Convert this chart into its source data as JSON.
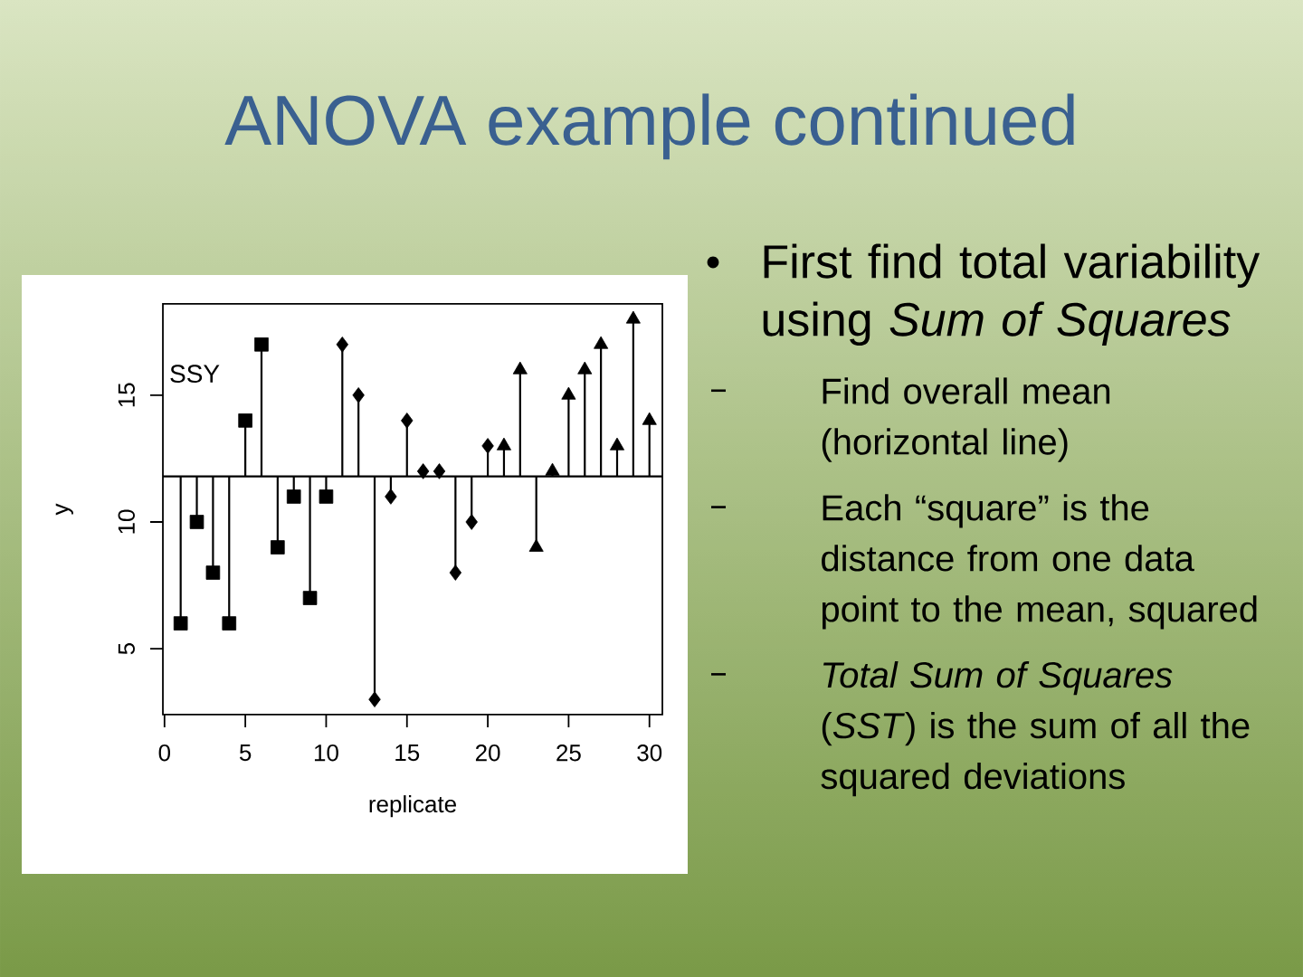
{
  "chart_data": {
    "type": "scatter",
    "title": "ANOVA example continued",
    "xlabel": "replicate",
    "ylabel": "y",
    "annotations": [
      "SSY",
      "First find total variability using *Sum of Squares*",
      "Find overall mean (horizontal line)",
      "Each “square” is the distance from one data point to the mean, squared",
      "*Total Sum of Squares* (*SST*) is the sum of all the squared deviations"
    ],
    "series": [
      {
        "color": "#000000",
        "marker": "square",
        "x": [
          1,
          2,
          3,
          4,
          5,
          6,
          7,
          8,
          9,
          10
        ],
        "values": [
          6,
          10,
          8,
          6,
          14,
          17,
          9,
          11,
          7,
          11
        ],
        "errors": [
          [
            6,
            11.8
          ],
          [
            10,
            11.8
          ],
          [
            8,
            11.8
          ],
          [
            6,
            11.8
          ],
          [
            11.8,
            14
          ],
          [
            11.8,
            17
          ],
          [
            9,
            11.8
          ],
          [
            11,
            11.8
          ],
          [
            7,
            11.8
          ],
          [
            11,
            11.8
          ]
        ]
      },
      {
        "color": "#000000",
        "marker": "diamond",
        "x": [
          11,
          12,
          13,
          14,
          15,
          16,
          17,
          18,
          19,
          20
        ],
        "values": [
          17,
          15,
          3,
          11,
          14,
          12,
          12,
          8,
          10,
          13
        ],
        "errors": [
          [
            11.8,
            17
          ],
          [
            11.8,
            15
          ],
          [
            3,
            11.8
          ],
          [
            11,
            11.8
          ],
          [
            11.8,
            14
          ],
          [
            11.8,
            12
          ],
          [
            11.8,
            12
          ],
          [
            8,
            11.8
          ],
          [
            10,
            11.8
          ],
          [
            11.8,
            13
          ]
        ]
      },
      {
        "color": "#000000",
        "marker": "triangle",
        "x": [
          21,
          22,
          23,
          24,
          25,
          26,
          27,
          28,
          29,
          30
        ],
        "values": [
          13,
          16,
          9,
          12,
          15,
          16,
          17,
          13,
          18,
          14
        ],
        "errors": [
          [
            11.8,
            13
          ],
          [
            11.8,
            16
          ],
          [
            9,
            11.8
          ],
          [
            11.8,
            12
          ],
          [
            11.8,
            15
          ],
          [
            11.8,
            16
          ],
          [
            11.8,
            17
          ],
          [
            11.8,
            13
          ],
          [
            11.8,
            18
          ],
          [
            11.8,
            14
          ]
        ]
      }
    ],
    "ref_lines": [
      {
        "axis": "y",
        "value": 11.8
      }
    ],
    "xlim": [
      -0.1,
      30.8
    ],
    "ylim": [
      2.4,
      18.6
    ],
    "xticks": [
      0,
      5,
      10,
      15,
      20,
      25,
      30
    ],
    "yticks": [
      5,
      10,
      15
    ]
  }
}
